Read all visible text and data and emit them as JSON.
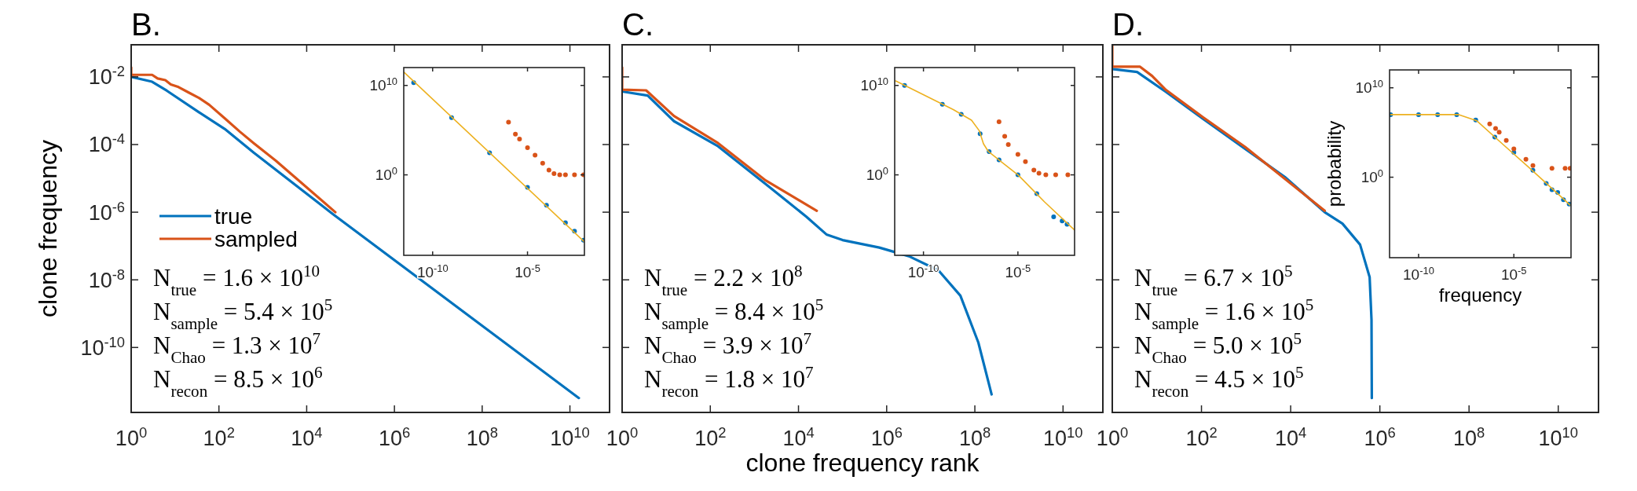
{
  "chart_data": [
    {
      "type": "line",
      "title": "B.",
      "ylabel": "clone frequency",
      "log": "xy",
      "legend": "left",
      "xlim": [
        1,
        80000000000.0
      ],
      "ylim": [
        1.2e-12,
        0.089
      ],
      "xticks": [
        {
          "value": 1,
          "label": "10$^{0}$"
        },
        {
          "value": 100,
          "label": "10$^{2}$"
        },
        {
          "value": 10000.0,
          "label": "10$^{4}$"
        },
        {
          "value": 1000000.0,
          "label": "10$^{6}$"
        },
        {
          "value": 100000000.0,
          "label": "10$^{8}$"
        },
        {
          "value": 10000000000.0,
          "label": "10$^{10}$"
        }
      ],
      "yticks": [
        {
          "value": 0.01,
          "label": "10$^{-2}$"
        },
        {
          "value": 0.0001,
          "label": "10$^{-4}$"
        },
        {
          "value": 1e-06,
          "label": "10$^{-6}$"
        },
        {
          "value": 1e-08,
          "label": "10$^{-8}$"
        },
        {
          "value": 1e-10,
          "label": "10$^{-10}$"
        }
      ],
      "series": [
        {
          "name": "true",
          "color": "#0072bd",
          "x": [
            1,
            3,
            6.5,
            35,
            135,
            620,
            40000.0,
            16000000000.0
          ],
          "values": [
            0.01,
            0.0072,
            0.0039,
            0.0009,
            0.00029,
            5.8e-05,
            8.7e-07,
            3.2e-12
          ]
        },
        {
          "name": "sampled",
          "color": "#d95319",
          "x": [
            1,
            1,
            3,
            4,
            6,
            8,
            12,
            20,
            35,
            60,
            135,
            300,
            620,
            2000,
            45000.0
          ],
          "values": [
            0.019,
            0.0115,
            0.0115,
            0.009,
            0.008,
            0.006,
            0.005,
            0.0035,
            0.0024,
            0.0015,
            0.0006,
            0.00024,
            0.00011,
            3.3e-05,
            1e-06
          ]
        }
      ],
      "annotations": [
        "N$_{true}$ = 1.6 × 10$^{10}$",
        "N$_{sample}$ = 5.4 × 10$^{5}$",
        "N$_{Chao}$ = 1.3 × 10$^{7}$",
        "N$_{recon}$ = 8.5 × 10$^{6}$"
      ]
    },
    {
      "type": "scatter",
      "log": "xy",
      "xlim": [
        3e-12,
        0.01
      ],
      "ylim": [
        1e-09,
        1000000000000.0
      ],
      "xticks": [
        {
          "value": 1e-10,
          "label": "10$^{-10}$"
        },
        {
          "value": 1e-05,
          "label": "10$^{-5}$"
        }
      ],
      "yticks": [
        {
          "value": 1,
          "label": "10$^{0}$"
        },
        {
          "value": 10000000000.0,
          "label": "10$^{10}$"
        }
      ],
      "series": [
        {
          "marker": "circle",
          "color": "#0072bd",
          "x": [
            1e-11,
            1e-09,
            1e-07,
            1e-05,
            0.0001,
            0.001,
            0.003,
            0.009
          ],
          "values": [
            20000000000.0,
            2500000.0,
            300,
            0.04,
            0.0004,
            4.5e-06,
            5e-07,
            5e-08
          ]
        },
        {
          "type": "line",
          "marker": "none",
          "color": "#edb120",
          "x": [
            3e-12,
            0.01
          ],
          "values": [
            320000000000.0,
            3.2e-08
          ]
        },
        {
          "marker": "circle",
          "color": "#d95319",
          "x": [
            1e-06,
            2.3e-06,
            3.8e-06,
            1e-05,
            2.5e-05,
            6.3e-05,
            0.000135,
            0.00025,
            0.0005,
            0.001,
            0.003,
            0.009
          ],
          "values": [
            800000.0,
            36000.0,
            10000.0,
            1100.0,
            160,
            20,
            3.5,
            1.4,
            1,
            1,
            1,
            1
          ]
        }
      ]
    },
    {
      "type": "line",
      "title": "C.",
      "xlabel": "clone frequency rank",
      "log": "xy",
      "tick_labels": "x",
      "xlim": [
        1,
        80000000000.0
      ],
      "ylim": [
        1.2e-12,
        0.089
      ],
      "xticks": [
        {
          "value": 1,
          "label": "10$^{0}$"
        },
        {
          "value": 100,
          "label": "10$^{2}$"
        },
        {
          "value": 10000.0,
          "label": "10$^{4}$"
        },
        {
          "value": 1000000.0,
          "label": "10$^{6}$"
        },
        {
          "value": 100000000.0,
          "label": "10$^{8}$"
        },
        {
          "value": 10000000000.0,
          "label": "10$^{10}$"
        }
      ],
      "yticks": [
        {
          "value": 0.01,
          "label": null
        },
        {
          "value": 0.0001,
          "label": null
        },
        {
          "value": 1e-06,
          "label": null
        },
        {
          "value": 1e-08,
          "label": null
        },
        {
          "value": 1e-10,
          "label": null
        }
      ],
      "series": [
        {
          "color": "#0072bd",
          "x": [
            1,
            3.8,
            15,
            150,
            1800,
            15000.0,
            43000.0,
            100000.0,
            680000.0,
            3200000.0,
            15000000.0,
            47000000.0,
            120000000.0,
            240000000.0
          ],
          "values": [
            0.0037,
            0.0028,
            0.00049,
            8.9e-05,
            6.8e-06,
            7.4e-07,
            2.2e-07,
            1.5e-07,
            9e-08,
            5e-08,
            1.9e-08,
            3.4e-09,
            1.4e-10,
            4.1e-12
          ]
        },
        {
          "color": "#d95319",
          "x": [
            1,
            1,
            3.5,
            15,
            150,
            1800,
            26000.0
          ],
          "values": [
            0.019,
            0.0042,
            0.004,
            0.0007,
            0.00011,
            8.7e-06,
            1.1e-06
          ]
        }
      ],
      "annotations": [
        "N$_{true}$ = 2.2 × 10$^{8}$",
        "N$_{sample}$ = 8.4 × 10$^{5}$",
        "N$_{Chao}$ = 3.9 × 10$^{7}$",
        "N$_{recon}$ = 1.8 × 10$^{7}$"
      ]
    },
    {
      "type": "scatter",
      "log": "xy",
      "xlim": [
        3e-12,
        0.01
      ],
      "ylim": [
        1e-09,
        1000000000000.0
      ],
      "xticks": [
        {
          "value": 1e-10,
          "label": "10$^{-10}$"
        },
        {
          "value": 1e-05,
          "label": "10$^{-5}$"
        }
      ],
      "yticks": [
        {
          "value": 1,
          "label": "10$^{0}$"
        },
        {
          "value": 10000000000.0,
          "label": "10$^{10}$"
        }
      ],
      "series": [
        {
          "marker": "circle",
          "color": "#0072bd",
          "x": [
            1e-11,
            1e-09,
            1e-08,
            1e-07,
            3e-07,
            1e-06,
            1e-05,
            0.0001,
            0.00078,
            0.0022,
            0.004
          ],
          "values": [
            10000000000.0,
            80000000.0,
            6000000.0,
            40000.0,
            400,
            47,
            1,
            0.008,
            2e-05,
            7e-06,
            3e-06
          ]
        },
        {
          "type": "line",
          "marker": "none",
          "color": "#edb120",
          "x": [
            3.4e-12,
            3.8e-09,
            3.5e-08,
            9e-08,
            1.5e-07,
            2.75e-07,
            1.07e-05,
            0.00025,
            0.0098
          ],
          "values": [
            32000000000.0,
            20000000.0,
            1300000.0,
            87000.0,
            3000.0,
            400,
            0.9,
            0.001,
            6.8e-07
          ]
        },
        {
          "marker": "circle",
          "color": "#d95319",
          "x": [
            1e-06,
            2e-06,
            3.1e-06,
            1e-05,
            2.5e-05,
            7e-05,
            0.00013,
            0.0003,
            0.001,
            0.0044
          ],
          "values": [
            870000.0,
            20000.0,
            2400.0,
            200,
            30,
            3.4,
            1.5,
            1,
            1,
            1
          ]
        }
      ]
    },
    {
      "type": "line",
      "title": "D.",
      "log": "xy",
      "tick_labels": "x",
      "xlim": [
        1,
        80000000000.0
      ],
      "ylim": [
        1.2e-12,
        0.089
      ],
      "xticks": [
        {
          "value": 1,
          "label": "10$^{0}$"
        },
        {
          "value": 100,
          "label": "10$^{2}$"
        },
        {
          "value": 10000.0,
          "label": "10$^{4}$"
        },
        {
          "value": 1000000.0,
          "label": "10$^{6}$"
        },
        {
          "value": 100000000.0,
          "label": "10$^{8}$"
        },
        {
          "value": 10000000000.0,
          "label": "10$^{10}$"
        }
      ],
      "yticks": [
        {
          "value": 0.01,
          "label": null
        },
        {
          "value": 0.0001,
          "label": null
        },
        {
          "value": 1e-06,
          "label": null
        },
        {
          "value": 1e-08,
          "label": null
        },
        {
          "value": 1e-10,
          "label": null
        }
      ],
      "series": [
        {
          "color": "#0072bd",
          "x": [
            1,
            3.6,
            16,
            105,
            950,
            7400.0,
            58000.0,
            145000.0,
            360000.0,
            590000.0,
            650000.0,
            660000.0
          ],
          "values": [
            0.017,
            0.014,
            0.0036,
            0.00059,
            7.5e-05,
            1.1e-05,
            1e-06,
            4.6e-07,
            1.1e-07,
            1.2e-08,
            6.6e-10,
            3.2e-12
          ]
        },
        {
          "color": "#d95319",
          "x": [
            1,
            1,
            4.2,
            7.8,
            16,
            105,
            950,
            58000.0
          ],
          "values": [
            0.088,
            0.02,
            0.02,
            0.0107,
            0.0041,
            0.00066,
            8.5e-05,
            1.1e-06
          ]
        }
      ],
      "annotations": [
        "N$_{true}$ = 6.7 × 10$^{5}$",
        "N$_{sample}$ = 1.6 × 10$^{5}$",
        "N$_{Chao}$ = 5.0 × 10$^{5}$",
        "N$_{recon}$ = 4.5 × 10$^{5}$"
      ]
    },
    {
      "type": "scatter",
      "xlabel": "frequency",
      "ylabel": "probability",
      "log": "xy",
      "xlim": [
        3e-12,
        0.01
      ],
      "ylim": [
        1e-09,
        1000000000000.0
      ],
      "xticks": [
        {
          "value": 1e-10,
          "label": "10$^{-10}$"
        },
        {
          "value": 1e-05,
          "label": "10$^{-5}$"
        }
      ],
      "yticks": [
        {
          "value": 1,
          "label": "10$^{0}$"
        },
        {
          "value": 10000000000.0,
          "label": "10$^{10}$"
        }
      ],
      "series": [
        {
          "marker": "circle",
          "color": "#0072bd",
          "x": [
            3.4e-12,
            1e-10,
            1e-09,
            1e-08,
            1e-07,
            1e-06,
            1e-05,
            0.0001,
            0.0005,
            0.001,
            0.002,
            0.004,
            0.008
          ],
          "values": [
            10000000.0,
            10000000.0,
            10000000.0,
            10000000.0,
            2500000.0,
            30000.0,
            600,
            6,
            0.2,
            0.04,
            0.02,
            0.003,
            0.001
          ]
        },
        {
          "type": "line",
          "marker": "none",
          "color": "#edb120",
          "x": [
            3.4e-12,
            1.3e-08,
            1.15e-07,
            2.6e-06,
            6e-05,
            0.0049,
            0.0087
          ],
          "values": [
            10000000.0,
            10000000.0,
            2000000.0,
            5000.0,
            13,
            0.0025,
            0.0008
          ]
        },
        {
          "marker": "circle",
          "color": "#d95319",
          "x": [
            5.4e-07,
            1.1e-06,
            1.7e-06,
            4e-06,
            1e-05,
            4.3e-05,
            0.0001,
            0.001,
            0.0049,
            0.009
          ],
          "values": [
            900000.0,
            280000.0,
            110000.0,
            13000.0,
            1500.0,
            100,
            20,
            10,
            10,
            10
          ]
        }
      ]
    }
  ]
}
